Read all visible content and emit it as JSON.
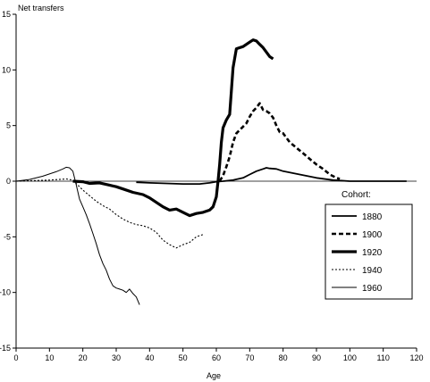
{
  "chart_data": {
    "type": "line",
    "title": "",
    "ylabel": "Net transfers",
    "xlabel": "Age",
    "xlim": [
      0,
      120
    ],
    "ylim": [
      -15,
      15
    ],
    "xticks": [
      0,
      10,
      20,
      30,
      40,
      50,
      60,
      70,
      80,
      90,
      100,
      110,
      120
    ],
    "yticks": [
      -15,
      -10,
      -5,
      0,
      5,
      10,
      15
    ],
    "grid": false,
    "legend": {
      "title": "Cohort:",
      "position": "right"
    },
    "series": [
      {
        "name": "1880",
        "style": "thin-solid-medium",
        "x": [
          36,
          40,
          45,
          50,
          55,
          58,
          60,
          62,
          65,
          68,
          70,
          72,
          74,
          75,
          76,
          78,
          80,
          85,
          90,
          95,
          100,
          110,
          117
        ],
        "y": [
          -0.1,
          -0.15,
          -0.2,
          -0.25,
          -0.25,
          -0.15,
          -0.05,
          0,
          0.1,
          0.3,
          0.6,
          0.9,
          1.1,
          1.2,
          1.15,
          1.1,
          0.9,
          0.6,
          0.3,
          0.1,
          0,
          0,
          0
        ]
      },
      {
        "name": "1900",
        "style": "dashed",
        "x": [
          61,
          62,
          63,
          64,
          65,
          66,
          67,
          68,
          69,
          70,
          71,
          72,
          73,
          74,
          75,
          76,
          77,
          78,
          79,
          80,
          82,
          84,
          86,
          88,
          90,
          92,
          94,
          96,
          97
        ],
        "y": [
          0,
          0.5,
          1.3,
          2.2,
          3.5,
          4.3,
          4.6,
          4.9,
          5.2,
          5.8,
          6.3,
          6.6,
          7.0,
          6.4,
          6.3,
          6.1,
          5.7,
          5.0,
          4.4,
          4.3,
          3.5,
          3.0,
          2.5,
          2.0,
          1.5,
          1.1,
          0.6,
          0.3,
          0.2
        ]
      },
      {
        "name": "1920",
        "style": "thick-solid",
        "x": [
          17,
          20,
          22,
          25,
          28,
          30,
          32,
          35,
          38,
          40,
          42,
          44,
          46,
          48,
          50,
          52,
          54,
          56,
          58,
          59,
          60,
          60.5,
          61,
          61.5,
          62,
          63,
          64,
          65,
          66,
          68,
          70,
          71,
          72,
          73,
          74,
          75,
          76,
          77
        ],
        "y": [
          0,
          -0.05,
          -0.2,
          -0.15,
          -0.35,
          -0.5,
          -0.7,
          -1.0,
          -1.2,
          -1.5,
          -1.9,
          -2.3,
          -2.6,
          -2.5,
          -2.8,
          -3.1,
          -2.9,
          -2.8,
          -2.6,
          -2.3,
          -1.4,
          0,
          1.5,
          3.5,
          4.8,
          5.5,
          6.0,
          10.2,
          11.9,
          12.1,
          12.5,
          12.7,
          12.6,
          12.3,
          12.0,
          11.6,
          11.2,
          11.0
        ]
      },
      {
        "name": "1940",
        "style": "dotted",
        "x": [
          0,
          5,
          10,
          15,
          17,
          18,
          19,
          20,
          22,
          24,
          26,
          28,
          30,
          32,
          34,
          36,
          38,
          40,
          42,
          44,
          46,
          48,
          50,
          52,
          54,
          56
        ],
        "y": [
          0,
          0.05,
          0.1,
          0.2,
          0.1,
          -0.2,
          -0.5,
          -0.8,
          -1.3,
          -1.8,
          -2.2,
          -2.5,
          -3.0,
          -3.4,
          -3.7,
          -3.9,
          -4.0,
          -4.2,
          -4.6,
          -5.3,
          -5.7,
          -6.0,
          -5.7,
          -5.5,
          -5.0,
          -4.8
        ]
      },
      {
        "name": "1960",
        "style": "thin-solid",
        "x": [
          0,
          4,
          8,
          12,
          14,
          15,
          16,
          17,
          18,
          19,
          20,
          21,
          22,
          23,
          24,
          25,
          26,
          27,
          28,
          29,
          30,
          31,
          32,
          33,
          34,
          35,
          36,
          37
        ],
        "y": [
          0,
          0.15,
          0.45,
          0.85,
          1.1,
          1.25,
          1.2,
          0.9,
          -0.3,
          -1.6,
          -2.3,
          -3.0,
          -3.8,
          -4.7,
          -5.6,
          -6.6,
          -7.4,
          -8.0,
          -8.8,
          -9.4,
          -9.6,
          -9.7,
          -9.8,
          -10.0,
          -9.7,
          -10.1,
          -10.4,
          -11.1
        ]
      }
    ]
  }
}
